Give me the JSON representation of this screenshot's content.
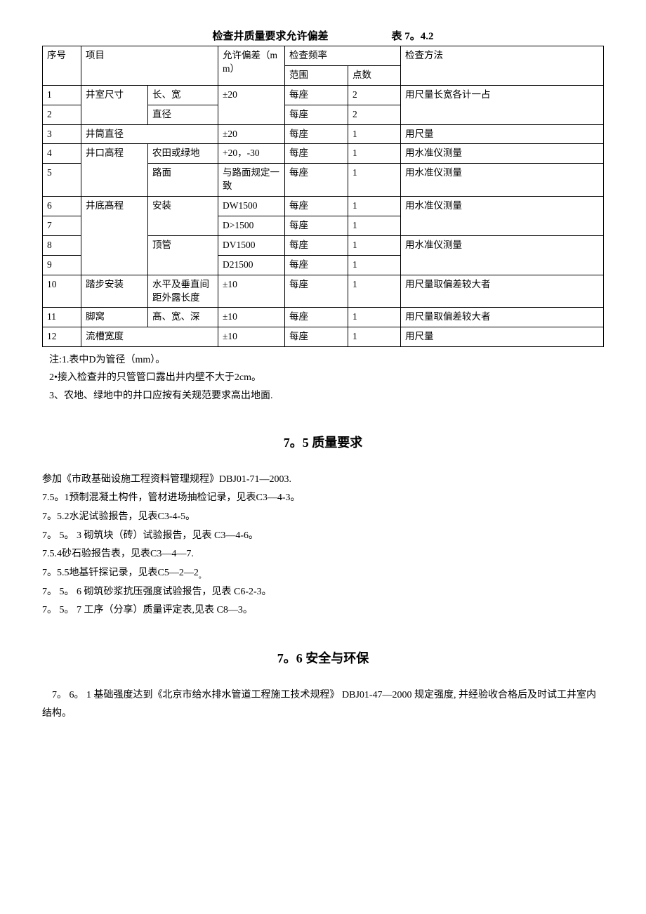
{
  "table": {
    "title_main": "检查井质量要求允许偏差",
    "title_ref": "表 7。4.2",
    "headers": {
      "seq": "序号",
      "item": "项目",
      "tolerance": "允许偏差（mm）",
      "freq": "检查频率",
      "range": "范围",
      "points": "点数",
      "method": "检查方法"
    },
    "rows": {
      "r1": {
        "seq": "1",
        "item": "井室尺寸",
        "sub": "长、宽",
        "tol": "±20",
        "rng": "每座",
        "pts": "2"
      },
      "r2": {
        "seq": "2",
        "sub": "直径",
        "rng": "每座",
        "pts": "2"
      },
      "method12": "用尺量长宽各计一占",
      "r3": {
        "seq": "3",
        "item": "井筒直径",
        "tol": "±20",
        "rng": "每座",
        "pts": "1",
        "method": "用尺量"
      },
      "r4": {
        "seq": "4",
        "item": "井口高程",
        "sub": "农田或绿地",
        "tol": "+20，-30",
        "rng": "每座",
        "pts": "1",
        "method": "用水准仪测量"
      },
      "r5": {
        "seq": "5",
        "sub": "路面",
        "tol": "与路面规定一致",
        "rng": "每座",
        "pts": "1",
        "method": "用水准仪测量"
      },
      "r6": {
        "seq": "6",
        "item": "井底髙程",
        "sub": "安装",
        "tol": "DW1500",
        "rng": "每座",
        "pts": "1"
      },
      "r7": {
        "seq": "7",
        "tol": "D>1500",
        "rng": "每座",
        "pts": "1"
      },
      "method67": "用水准仪测量",
      "r8": {
        "seq": "8",
        "sub": "顶管",
        "tol": "DV1500",
        "rng": "每座",
        "pts": "1"
      },
      "r9": {
        "seq": "9",
        "tol": "D21500",
        "rng": "每座",
        "pts": "1"
      },
      "method89": "用水准仪测量",
      "r10": {
        "seq": "10",
        "item": "踏步安装",
        "sub": "水平及垂直间距外露长度",
        "tol": "±10",
        "rng": "每座",
        "pts": "1",
        "method": "用尺量取偏差较大者"
      },
      "r11": {
        "seq": "11",
        "item": "脚窝",
        "sub": "髙、宽、深",
        "tol": "±10",
        "rng": "每座",
        "pts": "1",
        "method": "用尺量取偏差较大者"
      },
      "r12": {
        "seq": "12",
        "item": "流槽宽度",
        "tol": "±10",
        "rng": "每座",
        "pts": "1",
        "method": "用尺量"
      }
    }
  },
  "notes": {
    "n1": "注:1.表中D为管径（mm）。",
    "n2": "2•接入检查井的只管管口露出井内壁不大于2cm。",
    "n3": "3、农地、绿地中的井口应按有关规范要求高出地面."
  },
  "section75": {
    "title": "7。5 质量要求",
    "lines": {
      "l1": "参加《市政基础设施工程资料管理规程》DBJ01-71—2003.",
      "l2": "7.5。1预制混凝土构件，管材进场抽检记录，见表C3—4-3。",
      "l3": "7。5.2水泥试验报告，见表C3-4-5。",
      "l4": "7。 5。 3 砌筑块（砖）试验报告，见表 C3—4-6。",
      "l5": "7.5.4砂石验报告表，见表C3—4—7.",
      "l6a": "7。5.5地基钎探记录，见表C5—2—2",
      "l6b": "。",
      "l7": "7。 5。 6 砌筑砂浆抗压强度试验报告，见表 C6-2-3。",
      "l8": "7。 5。 7 工序（分享）质量评定表,见表 C8—3。"
    }
  },
  "section76": {
    "title": "7。6 安全与环保",
    "lines": {
      "l1": "　7。 6。 1 基础强度达到《北京市给水排水管道工程施工技术规程》 DBJ01-47—2000 规定强度, 并经验收合格后及时试工井室内结构。"
    }
  }
}
